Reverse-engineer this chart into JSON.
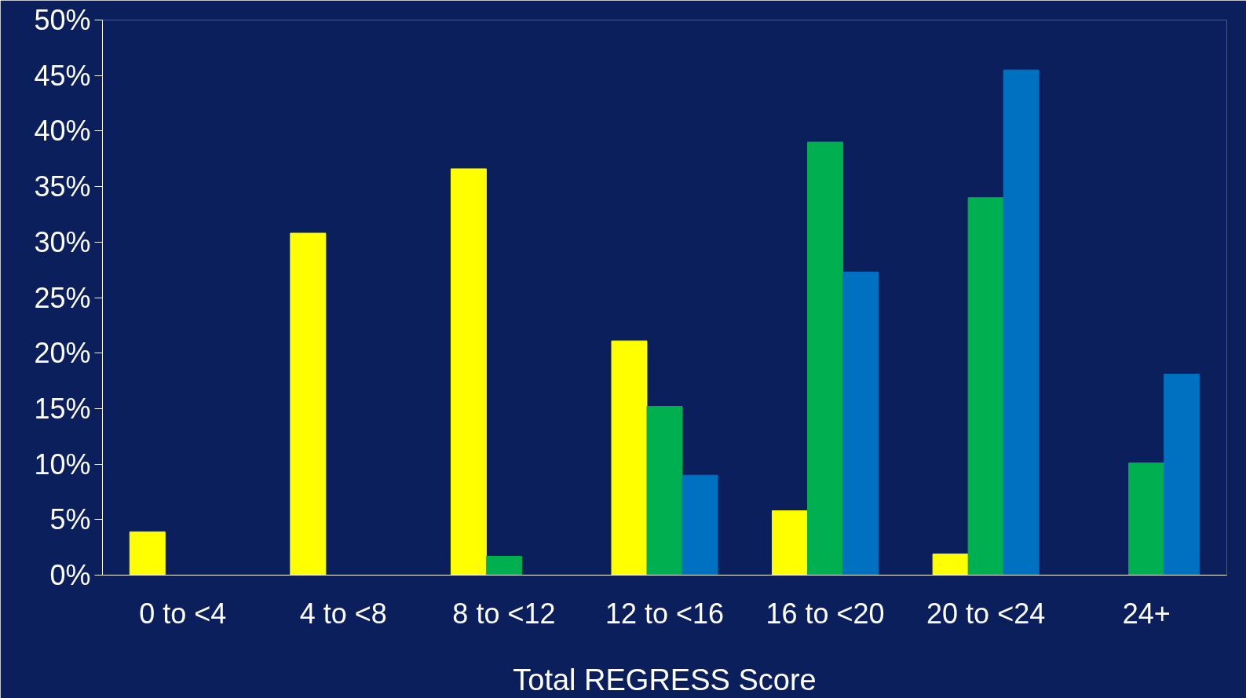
{
  "chart_data": {
    "type": "bar",
    "xlabel": "Total REGRESS Score",
    "categories": [
      "0 to <4",
      "4 to <8",
      "8 to <12",
      "12 to <16",
      "16 to <20",
      "20 to <24",
      "24+"
    ],
    "series": [
      {
        "color": "#ffff00",
        "values": [
          3.9,
          30.8,
          36.6,
          21.1,
          5.8,
          1.9,
          0
        ]
      },
      {
        "color": "#00b050",
        "values": [
          0,
          0,
          1.7,
          15.2,
          39.0,
          34.0,
          10.1
        ]
      },
      {
        "color": "#0070c0",
        "values": [
          0,
          0,
          0,
          9.0,
          27.3,
          45.5,
          18.1
        ]
      }
    ],
    "ylim": [
      0,
      50
    ],
    "yticks": [
      {
        "value": 0,
        "label": "0%"
      },
      {
        "value": 5,
        "label": "5%"
      },
      {
        "value": 10,
        "label": "10%"
      },
      {
        "value": 15,
        "label": "15%"
      },
      {
        "value": 20,
        "label": "20%"
      },
      {
        "value": 25,
        "label": "25%"
      },
      {
        "value": 30,
        "label": "30%"
      },
      {
        "value": 35,
        "label": "35%"
      },
      {
        "value": 40,
        "label": "40%"
      },
      {
        "value": 45,
        "label": "45%"
      },
      {
        "value": 50,
        "label": "50%"
      }
    ],
    "grid": false
  }
}
